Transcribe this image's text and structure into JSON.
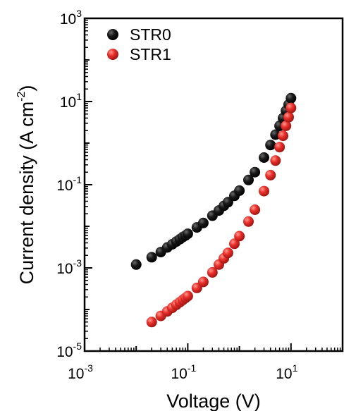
{
  "chart_data": {
    "type": "scatter",
    "xlabel": "Voltage (V)",
    "ylabel": "Current density (A cm",
    "ylabel_sup": "-2",
    "ylabel_close": ")",
    "x_scale": "log",
    "y_scale": "log",
    "xlim": [
      0.001,
      100
    ],
    "ylim": [
      1e-05,
      1000
    ],
    "x_ticks": [
      {
        "base": "10",
        "exp": "-3",
        "value": 0.001
      },
      {
        "base": "10",
        "exp": "-1",
        "value": 0.1
      },
      {
        "base": "10",
        "exp": "1",
        "value": 10
      }
    ],
    "y_ticks": [
      {
        "base": "10",
        "exp": "-5",
        "value": 1e-05
      },
      {
        "base": "10",
        "exp": "-3",
        "value": 0.001
      },
      {
        "base": "10",
        "exp": "-1",
        "value": 0.1
      },
      {
        "base": "10",
        "exp": "1",
        "value": 10
      },
      {
        "base": "10",
        "exp": "3",
        "value": 1000
      }
    ],
    "grid": false,
    "legend_position": "top-left",
    "series": [
      {
        "name": "STR0",
        "color": "#000000",
        "x": [
          0.01,
          0.02,
          0.03,
          0.04,
          0.05,
          0.06,
          0.07,
          0.08,
          0.09,
          0.1,
          0.15,
          0.2,
          0.3,
          0.4,
          0.5,
          0.6,
          0.8,
          1,
          1.5,
          2,
          3,
          4,
          5,
          6,
          7,
          8,
          9,
          10
        ],
        "y": [
          0.0012,
          0.0018,
          0.0024,
          0.0031,
          0.0037,
          0.0043,
          0.0049,
          0.0055,
          0.006,
          0.0066,
          0.0094,
          0.012,
          0.018,
          0.024,
          0.031,
          0.038,
          0.054,
          0.072,
          0.13,
          0.2,
          0.45,
          0.9,
          1.6,
          2.6,
          4,
          6,
          8.5,
          12
        ]
      },
      {
        "name": "STR1",
        "color": "#e8302c",
        "x": [
          0.02,
          0.03,
          0.04,
          0.05,
          0.06,
          0.07,
          0.08,
          0.09,
          0.1,
          0.15,
          0.2,
          0.3,
          0.4,
          0.5,
          0.6,
          0.8,
          1,
          1.5,
          2,
          3,
          4,
          5,
          6,
          7,
          8,
          9,
          10
        ],
        "y": [
          5e-05,
          7e-05,
          9e-05,
          0.00011,
          0.00013,
          0.00015,
          0.00017,
          0.00019,
          0.00021,
          0.00033,
          0.00046,
          0.00078,
          0.0012,
          0.0017,
          0.0023,
          0.0038,
          0.0058,
          0.013,
          0.025,
          0.07,
          0.17,
          0.38,
          0.8,
          1.5,
          2.6,
          4.2,
          7
        ]
      }
    ]
  }
}
